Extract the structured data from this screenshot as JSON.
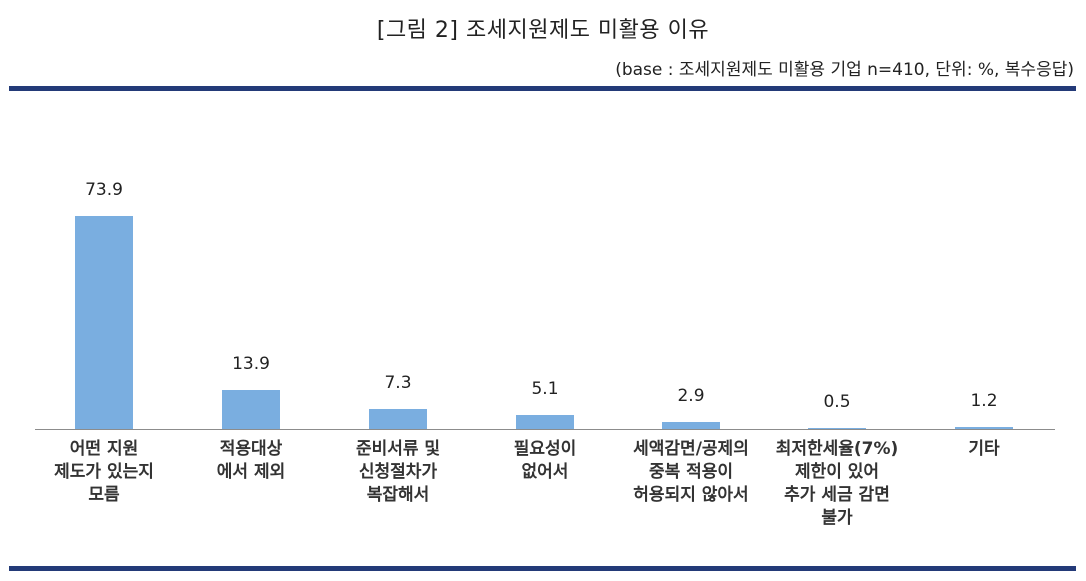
{
  "header": {
    "title": "[그림 2] 조세지원제도 미활용 이유",
    "subtitle": "(base : 조세지원제도 미활용 기업 n=410, 단위: %, 복수응답)"
  },
  "colors": {
    "rule": "#233a78",
    "bar": "#7aaee0",
    "axis": "#8c8c8c"
  },
  "chart_data": {
    "type": "bar",
    "title": "[그림 2] 조세지원제도 미활용 이유",
    "subtitle": "(base : 조세지원제도 미활용 기업 n=410, 단위: %, 복수응답)",
    "xlabel": "",
    "ylabel": "",
    "unit": "%",
    "categories": [
      "어떤 지원\n제도가 있는지\n모름",
      "적용대상\n에서 제외",
      "준비서류 및\n신청절차가\n복잡해서",
      "필요성이\n없어서",
      "세액감면/공제의\n중복 적용이\n허용되지 않아서",
      "최저한세율(7%)\n제한이 있어\n추가 세금 감면\n불가",
      "기타"
    ],
    "values": [
      73.9,
      13.9,
      7.3,
      5.1,
      2.9,
      0.5,
      1.2
    ],
    "value_labels": [
      "73.9",
      "13.9",
      "7.3",
      "5.1",
      "2.9",
      "0.5",
      "1.2"
    ],
    "ylim": [
      0,
      100
    ],
    "grid": false,
    "legend": null
  }
}
